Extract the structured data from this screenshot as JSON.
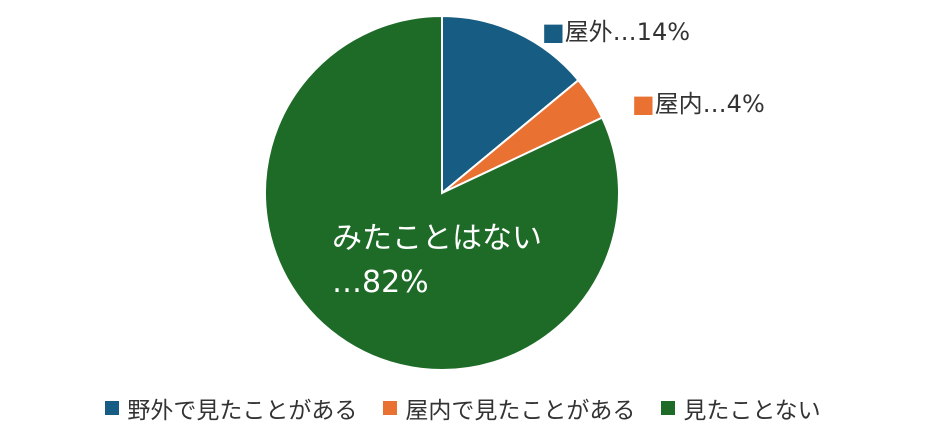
{
  "chart_data": {
    "type": "pie",
    "title": "",
    "slices": [
      {
        "name": "野外で見たことがある",
        "value": 14,
        "color": "#175c82",
        "label_mark": "■",
        "label_text": "屋外…14%"
      },
      {
        "name": "屋内で見たことがある",
        "value": 4,
        "color": "#e97132",
        "label_mark": "■",
        "label_text": "屋内…4%"
      },
      {
        "name": "見たことない",
        "value": 82,
        "color": "#1e6b28",
        "label_line1": "みたことはない",
        "label_line2": "…82%"
      }
    ],
    "legend": {
      "position": "bottom",
      "items": [
        {
          "label": "野外で見たことがある",
          "color": "#175c82"
        },
        {
          "label": "屋内で見たことがある",
          "color": "#e97132"
        },
        {
          "label": "見たことない",
          "color": "#1e6b28"
        }
      ]
    }
  }
}
